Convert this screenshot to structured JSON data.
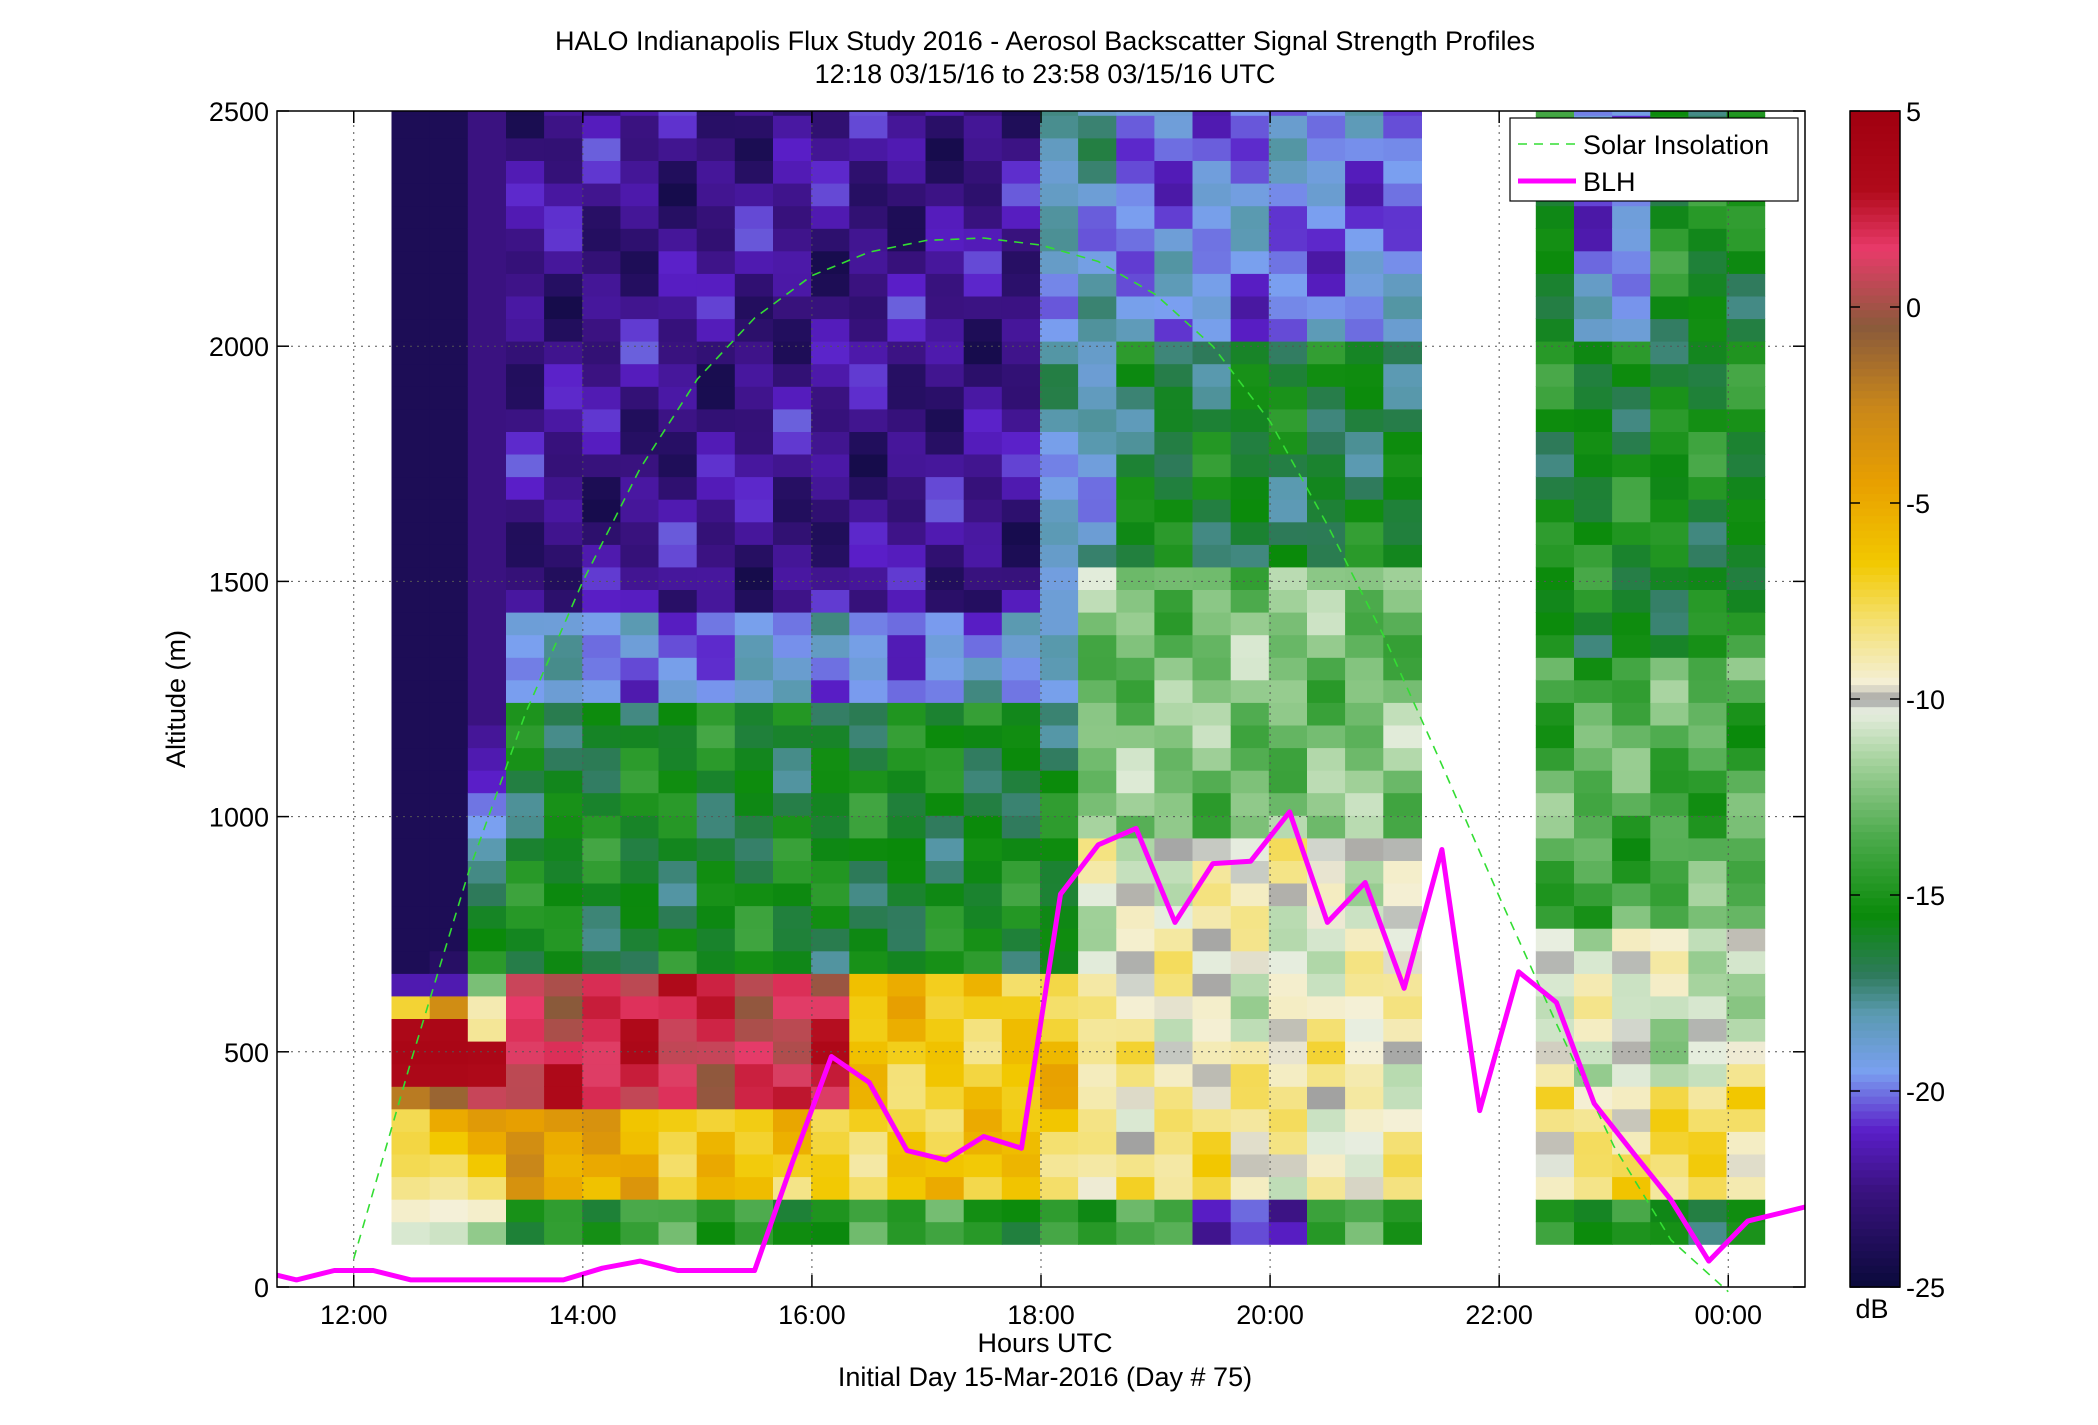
{
  "figure": {
    "title_line1": "HALO Indianapolis Flux Study 2016 - Aerosol Backscatter Signal Strength Profiles",
    "title_line2": "12:18 03/15/16 to 23:58 03/15/16  UTC",
    "xlabel": "Hours UTC",
    "xlabel_sub": "Initial Day 15-Mar-2016 (Day # 75)",
    "ylabel": "Altitude (m)",
    "colorbar_label": "dB"
  },
  "chart_data": {
    "type": "heatmap",
    "x_unit": "hours UTC (values past 24 are after midnight)",
    "xlim": [
      11.33,
      24.67
    ],
    "ylim": [
      0,
      2500
    ],
    "x_ticks": [
      12,
      14,
      16,
      18,
      20,
      22,
      24
    ],
    "x_tick_labels": [
      "12:00",
      "14:00",
      "16:00",
      "18:00",
      "20:00",
      "22:00",
      "00:00"
    ],
    "y_ticks": [
      0,
      500,
      1000,
      1500,
      2000,
      2500
    ],
    "y_tick_labels": [
      "0",
      "500",
      "1000",
      "1500",
      "2000",
      "2500"
    ],
    "grid": true,
    "grid_style": "dotted",
    "colorbar": {
      "clim": [
        -25,
        5
      ],
      "ticks": [
        5,
        0,
        -5,
        -10,
        -15,
        -20,
        -25
      ],
      "tick_labels": [
        "5",
        "0",
        "-5",
        "-10",
        "-15",
        "-20",
        "-25"
      ],
      "colormap_stops": [
        [
          -25,
          "#0a0a3a"
        ],
        [
          -22.5,
          "#3a1280"
        ],
        [
          -21,
          "#5a1ec8"
        ],
        [
          -19.5,
          "#7aa0f0"
        ],
        [
          -18,
          "#5a9ab0"
        ],
        [
          -17,
          "#2e7a5a"
        ],
        [
          -15.5,
          "#0a8a0a"
        ],
        [
          -13.5,
          "#4caa4c"
        ],
        [
          -11.5,
          "#a8d4a0"
        ],
        [
          -10.3,
          "#e8eee0"
        ],
        [
          -10,
          "#a0a0a0"
        ],
        [
          -9.6,
          "#f4f0d8"
        ],
        [
          -8,
          "#f4e070"
        ],
        [
          -6.5,
          "#f2c800"
        ],
        [
          -4.5,
          "#e8a000"
        ],
        [
          -2.5,
          "#c8861a"
        ],
        [
          -0.5,
          "#8a5a3a"
        ],
        [
          1.5,
          "#e83a6a"
        ],
        [
          3,
          "#b00a1a"
        ],
        [
          5,
          "#a00010"
        ]
      ]
    },
    "heatmap": {
      "x_start": 12.33,
      "x_end": 24.0,
      "altitude_start": 91,
      "altitude_step": 48,
      "column_width_hours": 0.333,
      "no_data_intervals": [
        [
          21.25,
          22.0
        ]
      ],
      "profiles": [
        {
          "x": 12.33,
          "top": 2500,
          "values": [
            -10.6,
            -9.4,
            -8.4,
            -7.6,
            -7.4,
            -7.6,
            -2.0,
            3.5,
            3.8,
            3.5,
            -7.2,
            -21.5,
            -24,
            -24,
            -24,
            -24,
            -24,
            -24,
            -24,
            -24,
            -24,
            -24,
            -24,
            -24,
            -24,
            -24,
            -24,
            -24,
            -24,
            -24,
            -24,
            -24,
            -24,
            -24,
            -24,
            -24,
            -24,
            -24,
            -24,
            -24,
            -24,
            -24,
            -24,
            -24,
            -24,
            -24,
            -24,
            -24,
            -24,
            -24,
            -24
          ]
        },
        {
          "x": 12.67,
          "top": 2500,
          "values": [
            -10.8,
            -9.6,
            -8.7,
            -7.8,
            -6.5,
            -5.0,
            -1.0,
            3.5,
            3.8,
            3.6,
            -3.0,
            -21.5,
            -23.5,
            -24,
            -24,
            -24,
            -24,
            -24,
            -24,
            -24,
            -24,
            -24,
            -24,
            -24,
            -24,
            -24,
            -24,
            -24,
            -24,
            -24,
            -24,
            -24,
            -24,
            -24,
            -24,
            -24,
            -24,
            -24,
            -24,
            -24,
            -24,
            -24,
            -24,
            -24,
            -24,
            -24,
            -24,
            -24,
            -24,
            -24,
            -24
          ]
        },
        {
          "x": 13.0,
          "top": 2500,
          "values": [
            -12.0,
            -9.4,
            -8.0,
            -6.5,
            -5.0,
            -4.0,
            0.8,
            3.2,
            3.6,
            -8.6,
            -9.0,
            -12.5,
            -14.5,
            -15.5,
            -16.0,
            -17.0,
            -17.5,
            -18.0,
            -19.5,
            -20.0,
            -21.0,
            -21.5,
            -22.0,
            -22.5,
            -22.5,
            -22.5,
            -22.5,
            -22.5,
            -22.5,
            -22.5,
            -22.5,
            -22.5,
            -22.5,
            -22.5,
            -22.5,
            -22.5,
            -22.5,
            -22.5,
            -22.5,
            -22.5,
            -22.5,
            -22.5,
            -22.5,
            -22.5,
            -22.5,
            -22.5,
            -22.5,
            -22.5,
            -22.5,
            -22.5,
            -22.5
          ]
        }
      ]
    },
    "series": [
      {
        "name": "Solar Insolation",
        "style": "dashed",
        "color": "#33dd33",
        "x": [
          12.0,
          12.5,
          13.0,
          13.5,
          14.0,
          14.5,
          15.0,
          15.5,
          16.0,
          16.5,
          17.0,
          17.5,
          18.0,
          18.5,
          19.0,
          19.5,
          20.0,
          20.5,
          21.0,
          21.5,
          22.0,
          22.5,
          23.0,
          23.5,
          24.0
        ],
        "y": [
          60,
          480,
          880,
          1220,
          1500,
          1740,
          1930,
          2060,
          2150,
          2200,
          2225,
          2230,
          2215,
          2180,
          2110,
          2000,
          1840,
          1620,
          1380,
          1110,
          830,
          560,
          300,
          100,
          -10
        ]
      },
      {
        "name": "BLH",
        "style": "solid",
        "color": "#ff00ff",
        "x": [
          11.33,
          11.5,
          11.83,
          12.17,
          12.5,
          12.83,
          13.17,
          13.5,
          13.83,
          14.17,
          14.5,
          14.83,
          15.17,
          15.5,
          15.83,
          16.17,
          16.5,
          16.83,
          17.17,
          17.5,
          17.83,
          18.17,
          18.5,
          18.83,
          19.17,
          19.5,
          19.83,
          20.17,
          20.5,
          20.83,
          21.17,
          21.5,
          21.83,
          22.17,
          22.5,
          22.83,
          23.17,
          23.5,
          23.83,
          24.17,
          24.67
        ],
        "y": [
          25,
          15,
          35,
          35,
          15,
          15,
          15,
          15,
          15,
          40,
          55,
          35,
          35,
          35,
          265,
          490,
          435,
          290,
          270,
          320,
          295,
          835,
          940,
          975,
          775,
          900,
          905,
          1010,
          775,
          860,
          635,
          930,
          375,
          670,
          605,
          390,
          285,
          185,
          55,
          140,
          170
        ]
      }
    ],
    "legend": {
      "position": "top-right",
      "entries": [
        "Solar Insolation",
        "BLH"
      ]
    }
  }
}
